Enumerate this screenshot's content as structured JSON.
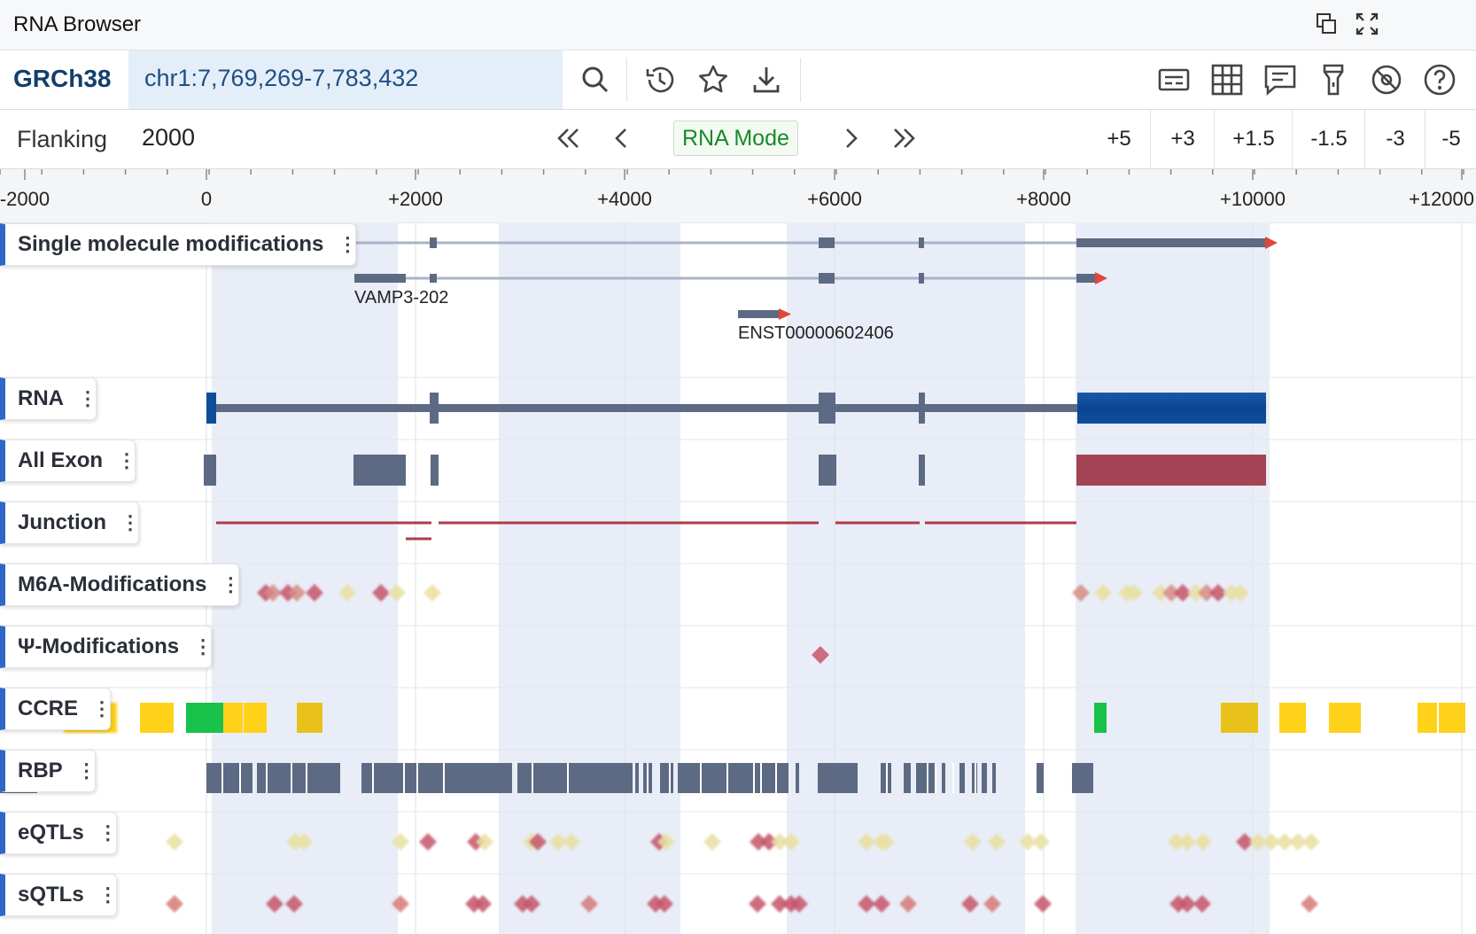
{
  "window": {
    "title": "RNA Browser"
  },
  "locbar": {
    "genome": "GRCh38",
    "location": "chr1:7,769,269-7,783,432"
  },
  "flank": {
    "label": "Flanking",
    "value": "2000",
    "mode_button": "RNA Mode",
    "shifts": [
      "+5",
      "+3",
      "+1.5",
      "-1.5",
      "-3",
      "-5"
    ]
  },
  "ruler": {
    "ticks": [
      "-2000",
      "0",
      "+2000",
      "+4000",
      "+6000",
      "+8000",
      "+10000",
      "+12000"
    ]
  },
  "transcripts": [
    {
      "name": "VAMP3-202"
    },
    {
      "name": "ENST00000602406"
    }
  ],
  "tracks": [
    {
      "label": "Single molecule modifications"
    },
    {
      "label": "RNA"
    },
    {
      "label": "All Exon"
    },
    {
      "label": "Junction"
    },
    {
      "label": "M6A-Modifications"
    },
    {
      "label": "Ψ-Modifications"
    },
    {
      "label": "CCRE"
    },
    {
      "label": "RBP"
    },
    {
      "label": "eQTLs"
    },
    {
      "label": "sQTLs"
    }
  ],
  "colors": {
    "accent": "#2f67c8",
    "exon": "#5d6a83",
    "rna_utr": "#0d4e9a",
    "utr_exon": "#a34555",
    "junction": "#b03a48",
    "strand_arrow": "#e0473a",
    "ccre_yellow": "#ffd21a",
    "ccre_green": "#19c24a"
  },
  "icons": {
    "titlebar": [
      "restore-window-icon",
      "fullscreen-icon"
    ],
    "locbar_left": [
      "search-icon",
      "history-icon",
      "star-icon",
      "download-icon"
    ],
    "locbar_right": [
      "legend-icon",
      "grid-icon",
      "comment-icon",
      "flashlight-icon",
      "no-location-icon",
      "help-icon"
    ]
  }
}
